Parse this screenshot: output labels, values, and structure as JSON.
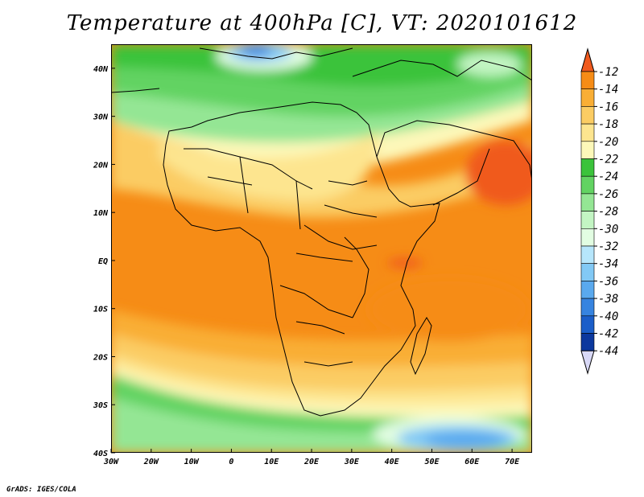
{
  "title": "Temperature at 400hPa [C], VT: 2020101612",
  "footer": "GrADS: IGES/COLA",
  "map": {
    "lon_range": [
      -30,
      75
    ],
    "lat_range": [
      -40,
      45
    ],
    "x_ticks": [
      "30W",
      "20W",
      "10W",
      "0",
      "10E",
      "20E",
      "30E",
      "40E",
      "50E",
      "60E",
      "70E"
    ],
    "y_ticks": [
      "40S",
      "30S",
      "20S",
      "10S",
      "EQ",
      "10N",
      "20N",
      "30N",
      "40N"
    ]
  },
  "colorbar": {
    "labels": [
      "-12",
      "-14",
      "-16",
      "-18",
      "-20",
      "-22",
      "-24",
      "-26",
      "-28",
      "-30",
      "-32",
      "-34",
      "-36",
      "-38",
      "-40",
      "-42",
      "-44"
    ],
    "colors": [
      "#f05a1e",
      "#f68c16",
      "#f9ae35",
      "#fbcc63",
      "#fde58f",
      "#fdf8b9",
      "#3bc33b",
      "#62d362",
      "#94e694",
      "#c3f5c3",
      "#e2fde2",
      "#b6e6fb",
      "#82c9f5",
      "#5aa9ee",
      "#3784e0",
      "#1b5ec9",
      "#0c389e",
      "#061a6e",
      "#d8d8f6"
    ]
  }
}
